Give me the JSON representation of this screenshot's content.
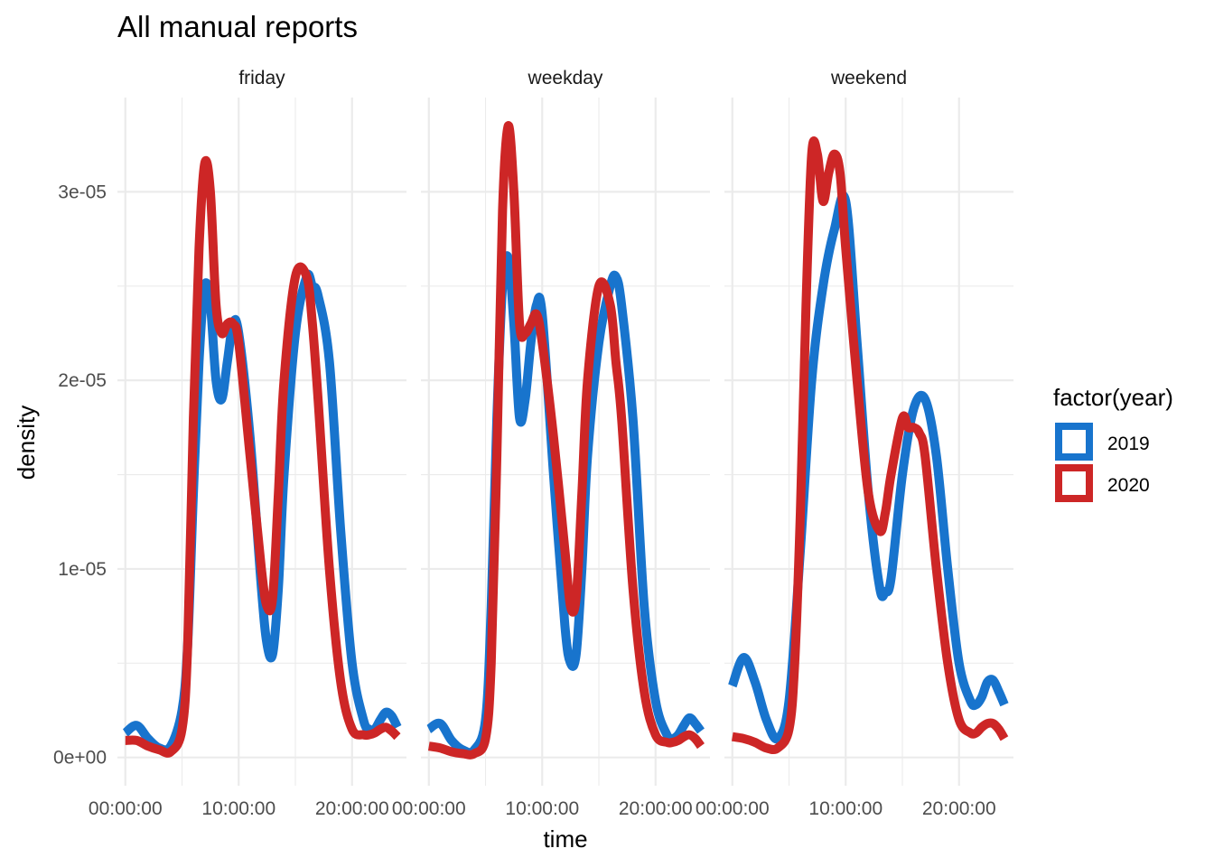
{
  "chart_data": {
    "type": "line",
    "title": "All manual reports",
    "xlabel": "time",
    "ylabel": "density",
    "facets": [
      "friday",
      "weekday",
      "weekend"
    ],
    "x_unit": "hours",
    "xlim": [
      -0.7,
      24.8
    ],
    "x_ticks": [
      0,
      10,
      20
    ],
    "x_tick_labels": [
      "00:00:00",
      "10:00:00",
      "20:00:00"
    ],
    "ylim": [
      -1.5e-06,
      3.5e-05
    ],
    "y_ticks": [
      0,
      1e-05,
      2e-05,
      3e-05
    ],
    "y_tick_labels": [
      "0e+00",
      "1e-05",
      "2e-05",
      "3e-05"
    ],
    "grid": true,
    "legend": {
      "title": "factor(year)",
      "position": "right",
      "entries": [
        {
          "label": "2019",
          "color": "#1874CD"
        },
        {
          "label": "2020",
          "color": "#CD2626"
        }
      ]
    },
    "panels": [
      {
        "facet": "friday",
        "series": [
          {
            "name": "2019",
            "color": "#1874CD",
            "x": [
              0,
              1,
              2,
              3,
              4,
              5,
              5.5,
              6,
              6.5,
              7,
              7.5,
              8,
              8.5,
              9,
              9.5,
              10,
              11,
              12,
              12.5,
              13,
              13.5,
              14,
              15,
              16,
              16.5,
              17,
              18,
              19,
              20,
              21,
              21.5,
              22,
              22.5,
              23,
              23.5,
              24
            ],
            "y": [
              1.3e-06,
              1.7e-06,
              1e-06,
              5e-07,
              6e-07,
              2.5e-06,
              6e-06,
              1.4e-05,
              2.1e-05,
              2.5e-05,
              2.4e-05,
              2e-05,
              1.9e-05,
              2.1e-05,
              2.3e-05,
              2.25e-05,
              1.7e-05,
              9e-06,
              6e-06,
              5.5e-06,
              9e-06,
              1.5e-05,
              2.25e-05,
              2.55e-05,
              2.5e-05,
              2.45e-05,
              2.1e-05,
              1.2e-05,
              5e-06,
              2e-06,
              1.5e-06,
              1.5e-06,
              2e-06,
              2.4e-06,
              2.2e-06,
              1.6e-06
            ]
          },
          {
            "name": "2020",
            "color": "#CD2626",
            "x": [
              0,
              1,
              2,
              3,
              4,
              5,
              5.5,
              6,
              6.5,
              7,
              7.5,
              8,
              8.5,
              9,
              9.5,
              10,
              11,
              12,
              12.5,
              13,
              13.5,
              14,
              15,
              16,
              16.5,
              17,
              18,
              19,
              20,
              21,
              21.5,
              22,
              22.5,
              23,
              23.5,
              24
            ],
            "y": [
              9e-07,
              9e-07,
              6e-07,
              4e-07,
              3e-07,
              1.5e-06,
              6e-06,
              1.8e-05,
              2.7e-05,
              3.15e-05,
              3e-05,
              2.4e-05,
              2.25e-05,
              2.3e-05,
              2.3e-05,
              2.2e-05,
              1.6e-05,
              1e-05,
              8e-06,
              8.5e-06,
              1.4e-05,
              2e-05,
              2.55e-05,
              2.55e-05,
              2.3e-05,
              1.9e-05,
              1e-05,
              4e-06,
              1.5e-06,
              1.2e-06,
              1.2e-06,
              1.3e-06,
              1.5e-06,
              1.6e-06,
              1.4e-06,
              1.1e-06
            ]
          }
        ]
      },
      {
        "facet": "weekday",
        "series": [
          {
            "name": "2019",
            "color": "#1874CD",
            "x": [
              0,
              1,
              2,
              3,
              4,
              5,
              5.5,
              6,
              6.5,
              7,
              7.5,
              8,
              8.5,
              9,
              9.5,
              10,
              11,
              12,
              12.5,
              13,
              13.5,
              14,
              15,
              16,
              16.5,
              17,
              18,
              19,
              20,
              21,
              21.5,
              22,
              22.5,
              23,
              23.5,
              24
            ],
            "y": [
              1.5e-06,
              1.8e-06,
              9e-07,
              4e-07,
              4e-07,
              2e-06,
              8e-06,
              1.8e-05,
              2.5e-05,
              2.65e-05,
              2.3e-05,
              1.8e-05,
              1.9e-05,
              2.2e-05,
              2.4e-05,
              2.35e-05,
              1.5e-05,
              7e-06,
              5e-06,
              5.5e-06,
              1e-05,
              1.6e-05,
              2.2e-05,
              2.5e-05,
              2.55e-05,
              2.4e-05,
              1.8e-05,
              8e-06,
              3e-06,
              1.2e-06,
              1e-06,
              1.2e-06,
              1.7e-06,
              2.1e-06,
              1.8e-06,
              1.4e-06
            ]
          },
          {
            "name": "2020",
            "color": "#CD2626",
            "x": [
              0,
              1,
              2,
              3,
              4,
              5,
              5.5,
              6,
              6.5,
              7,
              7.5,
              8,
              8.5,
              9,
              9.5,
              10,
              11,
              12,
              12.5,
              13,
              13.5,
              14,
              15,
              16,
              16.5,
              17,
              18,
              19,
              20,
              21,
              21.5,
              22,
              22.5,
              23,
              23.5,
              24
            ],
            "y": [
              6e-07,
              5e-07,
              3e-07,
              2e-07,
              2e-07,
              1e-06,
              5e-06,
              1.6e-05,
              2.9e-05,
              3.35e-05,
              3e-05,
              2.3e-05,
              2.25e-05,
              2.3e-05,
              2.35e-05,
              2.2e-05,
              1.7e-05,
              1.1e-05,
              8e-06,
              8.5e-06,
              1.4e-05,
              2e-05,
              2.5e-05,
              2.4e-05,
              2.1e-05,
              1.8e-05,
              9e-06,
              3.5e-06,
              1.2e-06,
              8e-07,
              8e-07,
              9e-07,
              1.1e-06,
              1.2e-06,
              1e-06,
              6e-07
            ]
          }
        ]
      },
      {
        "facet": "weekend",
        "series": [
          {
            "name": "2019",
            "color": "#1874CD",
            "x": [
              0,
              1,
              2,
              3,
              4,
              5,
              6,
              7,
              8,
              9,
              10,
              11,
              12,
              13,
              13.5,
              14,
              15,
              16,
              17,
              18,
              19,
              20,
              21,
              21.5,
              22,
              22.5,
              23,
              23.5,
              24
            ],
            "y": [
              3.8e-06,
              5.3e-06,
              4e-06,
              2e-06,
              1e-06,
              3e-06,
              1.1e-05,
              2e-05,
              2.5e-05,
              2.8e-05,
              2.95e-05,
              2.2e-05,
              1.4e-05,
              9e-06,
              8.8e-06,
              9.5e-06,
              1.5e-05,
              1.85e-05,
              1.9e-05,
              1.6e-05,
              1e-05,
              5e-06,
              3e-06,
              2.8e-06,
              3.2e-06,
              4e-06,
              4.1e-06,
              3.5e-06,
              2.8e-06
            ]
          },
          {
            "name": "2020",
            "color": "#CD2626",
            "x": [
              0,
              1,
              2,
              3,
              4,
              5,
              5.5,
              6,
              6.5,
              7,
              7.5,
              8,
              8.5,
              9,
              9.5,
              10,
              11,
              12,
              13,
              13.5,
              14,
              15,
              15.5,
              16,
              16.5,
              17,
              18,
              19,
              20,
              21,
              21.5,
              22,
              22.5,
              23,
              23.5,
              24
            ],
            "y": [
              1.1e-06,
              1e-06,
              8e-07,
              5e-07,
              5e-07,
              1.5e-06,
              5e-06,
              1.3e-05,
              2.4e-05,
              3.2e-05,
              3.2e-05,
              2.95e-05,
              3.1e-05,
              3.2e-05,
              3.1e-05,
              2.7e-05,
              2e-05,
              1.4e-05,
              1.2e-05,
              1.3e-05,
              1.5e-05,
              1.8e-05,
              1.75e-05,
              1.75e-05,
              1.72e-05,
              1.6e-05,
              1e-05,
              5e-06,
              2e-06,
              1.3e-06,
              1.3e-06,
              1.6e-06,
              1.8e-06,
              1.8e-06,
              1.5e-06,
              1e-06
            ]
          }
        ]
      }
    ]
  }
}
